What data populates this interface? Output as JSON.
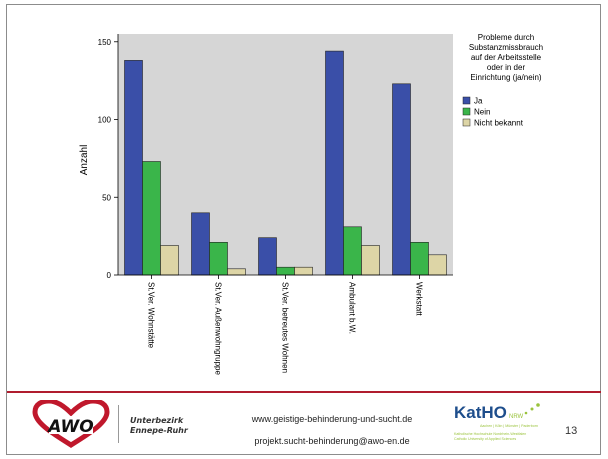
{
  "chart_data": {
    "type": "bar",
    "categories": [
      "St.Ver. Wohnstätte",
      "St.Ver. Außenwohngruppe",
      "St.Ver. betreutes Wohnen",
      "Ambulant b.W.",
      "Werkstatt"
    ],
    "series": [
      {
        "name": "Ja",
        "values": [
          138,
          40,
          24,
          144,
          123
        ],
        "color": "#3a4fa8"
      },
      {
        "name": "Nein",
        "values": [
          73,
          21,
          5,
          31,
          21
        ],
        "color": "#3ab54a"
      },
      {
        "name": "Nicht bekannt",
        "values": [
          19,
          4,
          5,
          19,
          13
        ],
        "color": "#ddd5a6"
      }
    ],
    "ylabel": "Anzahl",
    "xlabel": "",
    "ylim": [
      0,
      155
    ],
    "yticks": [
      0,
      50,
      100,
      150
    ],
    "legend": {
      "title_lines": [
        "Probleme durch",
        "Substanzmissbrauch",
        "auf der Arbeitsstelle",
        "oder in der",
        "Einrichtung (ja/nein)"
      ],
      "placement": "right"
    },
    "plot_background": "#d6d6d6",
    "grid": false
  },
  "footer": {
    "awo_logo_text": "AWO",
    "org_line1": "Unterbezirk",
    "org_line2": "Ennepe-Ruhr",
    "website": "www.geistige-behinderung-und-sucht.de",
    "email": "projekt.sucht-behinderung@awo-en.de",
    "katho_logo_text": "KatHO",
    "katho_suffix": "NRW",
    "katho_line1": "Aachen | Köln | Münster | Paderborn",
    "katho_line2": "Katholische Hochschule Nordrhein-Westfalen",
    "katho_line3": "Catholic University of Applied Sciences",
    "page_number": "13"
  },
  "colors": {
    "accent_red": "#b01c2e",
    "katho_blue": "#1e4e8c",
    "katho_green": "#9ac33c"
  }
}
